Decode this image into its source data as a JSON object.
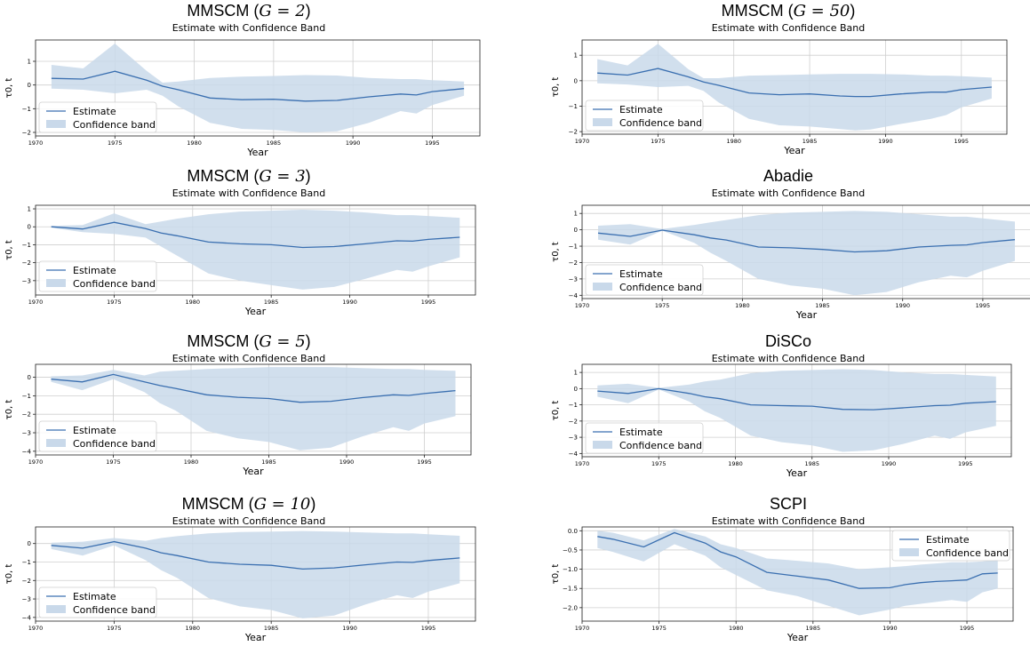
{
  "shared": {
    "subtitle": "Estimate with Confidence Band",
    "xlabel": "Year",
    "ylabel": "τ0, t",
    "legend_estimate": "Estimate",
    "legend_band": "Confidence band"
  },
  "colors": {
    "line": "#3a6fb0",
    "band": "#c9d9ea",
    "grid": "#cfcfcf"
  },
  "chart_data": [
    {
      "type": "line",
      "title_prefix": "MMSCM (",
      "title_math": "G = 2",
      "title_suffix": ")",
      "subtitle": "Estimate with Confidence Band",
      "xlabel": "Year",
      "ylabel": "τ0, t",
      "xlim": [
        1970,
        1998
      ],
      "ylim": [
        -2.15,
        1.9
      ],
      "xticks": [
        1970,
        1975,
        1980,
        1985,
        1990,
        1995
      ],
      "yticks": [
        -2,
        -1,
        0,
        1
      ],
      "grid": true,
      "legend": "lower-left",
      "x": [
        1971,
        1973,
        1975,
        1977,
        1978,
        1979,
        1981,
        1983,
        1985,
        1987,
        1989,
        1991,
        1993,
        1994,
        1995,
        1997
      ],
      "series": [
        {
          "name": "Estimate",
          "values": [
            0.28,
            0.25,
            0.58,
            0.2,
            -0.05,
            -0.2,
            -0.55,
            -0.62,
            -0.6,
            -0.68,
            -0.65,
            -0.5,
            -0.38,
            -0.42,
            -0.28,
            -0.15
          ]
        },
        {
          "name": "Confidence band",
          "lower": [
            -0.15,
            -0.2,
            -0.35,
            -0.2,
            -0.45,
            -0.9,
            -1.6,
            -1.85,
            -1.9,
            -2.0,
            -1.95,
            -1.6,
            -1.1,
            -1.2,
            -0.85,
            -0.45
          ],
          "upper": [
            0.85,
            0.7,
            1.75,
            0.6,
            0.1,
            0.15,
            0.3,
            0.35,
            0.38,
            0.42,
            0.4,
            0.3,
            0.25,
            0.25,
            0.2,
            0.15
          ]
        }
      ]
    },
    {
      "type": "line",
      "title_prefix": "MMSCM (",
      "title_math": "G = 3",
      "title_suffix": ")",
      "subtitle": "Estimate with Confidence Band",
      "xlabel": "Year",
      "ylabel": "τ0, t",
      "xlim": [
        1970,
        1998
      ],
      "ylim": [
        -3.8,
        1.2
      ],
      "xticks": [
        1970,
        1975,
        1980,
        1985,
        1990,
        1995
      ],
      "yticks": [
        -3,
        -2,
        -1,
        0,
        1
      ],
      "grid": true,
      "legend": "lower-left",
      "x": [
        1971,
        1973,
        1975,
        1977,
        1978,
        1979,
        1981,
        1983,
        1985,
        1987,
        1989,
        1991,
        1993,
        1994,
        1995,
        1997
      ],
      "series": [
        {
          "name": "Estimate",
          "values": [
            0.0,
            -0.12,
            0.25,
            -0.1,
            -0.35,
            -0.5,
            -0.85,
            -0.95,
            -1.0,
            -1.15,
            -1.1,
            -0.95,
            -0.78,
            -0.8,
            -0.7,
            -0.58
          ]
        },
        {
          "name": "Confidence band",
          "lower": [
            -0.05,
            -0.3,
            -0.4,
            -0.6,
            -1.1,
            -1.6,
            -2.6,
            -3.0,
            -3.25,
            -3.5,
            -3.35,
            -2.9,
            -2.4,
            -2.5,
            -2.2,
            -1.7
          ],
          "upper": [
            0.05,
            0.1,
            0.75,
            0.15,
            0.3,
            0.45,
            0.7,
            0.85,
            0.9,
            0.95,
            0.9,
            0.8,
            0.65,
            0.65,
            0.6,
            0.5
          ]
        }
      ]
    },
    {
      "type": "line",
      "title_prefix": "MMSCM (",
      "title_math": "G = 5",
      "title_suffix": ")",
      "subtitle": "Estimate with Confidence Band",
      "xlabel": "Year",
      "ylabel": "τ0, t",
      "xlim": [
        1970,
        1998
      ],
      "ylim": [
        -4.2,
        0.7
      ],
      "xticks": [
        1970,
        1975,
        1980,
        1985,
        1990,
        1995
      ],
      "yticks": [
        -4,
        -3,
        -2,
        -1,
        0
      ],
      "grid": true,
      "legend": "lower-left",
      "x": [
        1971,
        1973,
        1975,
        1977,
        1978,
        1979,
        1981,
        1983,
        1985,
        1987,
        1989,
        1991,
        1993,
        1994,
        1995,
        1997
      ],
      "series": [
        {
          "name": "Estimate",
          "values": [
            -0.1,
            -0.25,
            0.15,
            -0.25,
            -0.45,
            -0.6,
            -0.95,
            -1.08,
            -1.15,
            -1.35,
            -1.3,
            -1.1,
            -0.95,
            -0.98,
            -0.88,
            -0.72
          ]
        },
        {
          "name": "Confidence band",
          "lower": [
            -0.25,
            -0.7,
            -0.1,
            -0.8,
            -1.4,
            -1.8,
            -2.9,
            -3.3,
            -3.5,
            -3.95,
            -3.8,
            -3.2,
            -2.7,
            -2.9,
            -2.5,
            -2.1
          ],
          "upper": [
            0.05,
            0.1,
            0.4,
            0.1,
            0.3,
            0.35,
            0.45,
            0.5,
            0.55,
            0.55,
            0.55,
            0.5,
            0.45,
            0.45,
            0.4,
            0.35
          ]
        }
      ]
    },
    {
      "type": "line",
      "title_prefix": "MMSCM (",
      "title_math": "G = 10",
      "title_suffix": ")",
      "subtitle": "Estimate with Confidence Band",
      "xlabel": "Year",
      "ylabel": "τ0, t",
      "xlim": [
        1970,
        1998
      ],
      "ylim": [
        -4.2,
        0.9
      ],
      "xticks": [
        1970,
        1975,
        1980,
        1985,
        1990,
        1995
      ],
      "yticks": [
        -4,
        -3,
        -2,
        -1,
        0
      ],
      "grid": true,
      "legend": "lower-left",
      "x": [
        1971,
        1973,
        1975,
        1977,
        1978,
        1979,
        1981,
        1983,
        1985,
        1987,
        1989,
        1991,
        1993,
        1994,
        1995,
        1997
      ],
      "series": [
        {
          "name": "Estimate",
          "values": [
            -0.1,
            -0.25,
            0.1,
            -0.25,
            -0.5,
            -0.65,
            -1.0,
            -1.12,
            -1.18,
            -1.38,
            -1.32,
            -1.15,
            -1.0,
            -1.02,
            -0.92,
            -0.78
          ]
        },
        {
          "name": "Confidence band",
          "lower": [
            -0.3,
            -0.65,
            -0.1,
            -0.9,
            -1.45,
            -1.85,
            -2.95,
            -3.4,
            -3.6,
            -4.05,
            -3.9,
            -3.3,
            -2.8,
            -2.95,
            -2.6,
            -2.15
          ],
          "upper": [
            0.05,
            0.1,
            0.3,
            0.15,
            0.3,
            0.4,
            0.55,
            0.62,
            0.65,
            0.68,
            0.65,
            0.6,
            0.55,
            0.55,
            0.5,
            0.42
          ]
        }
      ]
    },
    {
      "type": "line",
      "title_prefix": "MMSCM (",
      "title_math": "G = 50",
      "title_suffix": ")",
      "subtitle": "Estimate with Confidence Band",
      "xlabel": "Year",
      "ylabel": "τ0, t",
      "xlim": [
        1970,
        1998
      ],
      "ylim": [
        -2.1,
        1.6
      ],
      "xticks": [
        1970,
        1975,
        1980,
        1985,
        1990,
        1995
      ],
      "yticks": [
        -2,
        -1,
        0,
        1
      ],
      "grid": true,
      "legend": "lower-left",
      "x": [
        1971,
        1973,
        1975,
        1977,
        1978,
        1979,
        1981,
        1983,
        1985,
        1987,
        1988,
        1989,
        1991,
        1993,
        1994,
        1995,
        1997
      ],
      "series": [
        {
          "name": "Estimate",
          "values": [
            0.3,
            0.22,
            0.48,
            0.15,
            -0.05,
            -0.18,
            -0.48,
            -0.55,
            -0.52,
            -0.6,
            -0.62,
            -0.62,
            -0.52,
            -0.45,
            -0.45,
            -0.35,
            -0.25
          ]
        },
        {
          "name": "Confidence band",
          "lower": [
            -0.1,
            -0.15,
            -0.25,
            -0.2,
            -0.4,
            -0.85,
            -1.5,
            -1.75,
            -1.8,
            -1.9,
            -1.95,
            -1.92,
            -1.7,
            -1.5,
            -1.35,
            -1.05,
            -0.7
          ],
          "upper": [
            0.85,
            0.6,
            1.45,
            0.45,
            0.1,
            0.1,
            0.2,
            0.22,
            0.25,
            0.27,
            0.27,
            0.27,
            0.25,
            0.2,
            0.2,
            0.18,
            0.12
          ]
        }
      ]
    },
    {
      "type": "line",
      "title": "Abadie",
      "subtitle": "Estimate with Confidence Band",
      "xlabel": "Year",
      "ylabel": "τ0, t",
      "xlim": [
        1970,
        1998
      ],
      "ylim": [
        -4.2,
        1.5
      ],
      "xticks": [
        1970,
        1975,
        1980,
        1985,
        1990,
        1995
      ],
      "yticks": [
        -4,
        -3,
        -2,
        -1,
        0,
        1
      ],
      "grid": true,
      "legend": "lower-left",
      "x": [
        1971,
        1973,
        1975,
        1977,
        1978,
        1979,
        1981,
        1983,
        1985,
        1987,
        1989,
        1991,
        1993,
        1994,
        1995,
        1997
      ],
      "series": [
        {
          "name": "Estimate",
          "values": [
            -0.2,
            -0.4,
            -0.02,
            -0.3,
            -0.5,
            -0.62,
            -1.05,
            -1.1,
            -1.2,
            -1.35,
            -1.28,
            -1.05,
            -0.95,
            -0.92,
            -0.78,
            -0.6
          ]
        },
        {
          "name": "Confidence band",
          "lower": [
            -0.6,
            -0.9,
            -0.05,
            -0.8,
            -1.4,
            -1.9,
            -3.0,
            -3.4,
            -3.6,
            -4.0,
            -3.8,
            -3.2,
            -2.8,
            -2.9,
            -2.5,
            -1.9
          ],
          "upper": [
            0.25,
            0.35,
            0.05,
            0.3,
            0.45,
            0.6,
            0.9,
            1.05,
            1.1,
            1.15,
            1.1,
            0.95,
            0.8,
            0.8,
            0.7,
            0.5
          ]
        }
      ]
    },
    {
      "type": "line",
      "title": "DiSCo",
      "subtitle": "Estimate with Confidence Band",
      "xlabel": "Year",
      "ylabel": "τ0, t",
      "xlim": [
        1970,
        1998
      ],
      "ylim": [
        -4.2,
        1.5
      ],
      "xticks": [
        1970,
        1975,
        1980,
        1985,
        1990,
        1995
      ],
      "yticks": [
        -4,
        -3,
        -2,
        -1,
        0,
        1
      ],
      "grid": true,
      "legend": "lower-left",
      "x": [
        1971,
        1973,
        1975,
        1977,
        1978,
        1979,
        1981,
        1983,
        1985,
        1987,
        1989,
        1991,
        1993,
        1994,
        1995,
        1997
      ],
      "series": [
        {
          "name": "Estimate",
          "values": [
            -0.15,
            -0.3,
            0.0,
            -0.3,
            -0.5,
            -0.62,
            -1.0,
            -1.05,
            -1.08,
            -1.28,
            -1.3,
            -1.18,
            -1.05,
            -1.02,
            -0.9,
            -0.8
          ]
        },
        {
          "name": "Confidence band",
          "lower": [
            -0.5,
            -0.9,
            -0.05,
            -0.8,
            -1.4,
            -1.8,
            -2.9,
            -3.3,
            -3.5,
            -3.9,
            -3.8,
            -3.4,
            -2.9,
            -3.1,
            -2.7,
            -2.3
          ],
          "upper": [
            0.2,
            0.3,
            0.05,
            0.25,
            0.45,
            0.55,
            0.95,
            1.1,
            1.15,
            1.2,
            1.15,
            1.0,
            0.9,
            0.9,
            0.85,
            0.75
          ]
        }
      ]
    },
    {
      "type": "line",
      "title": "SCPI",
      "subtitle": "Estimate with Confidence Band",
      "xlabel": "Year",
      "ylabel": "τ0, t",
      "xlim": [
        1970,
        1998
      ],
      "ylim": [
        -2.35,
        0.1
      ],
      "xticks": [
        1970,
        1975,
        1980,
        1985,
        1990,
        1995
      ],
      "yticks": [
        -2.0,
        -1.5,
        -1.0,
        -0.5,
        0.0
      ],
      "ytick_labels": [
        "−2.0",
        "−1.5",
        "−1.0",
        "−0.5",
        "0.0"
      ],
      "grid": true,
      "legend": "upper-right",
      "x": [
        1971,
        1972,
        1974,
        1976,
        1978,
        1979,
        1980,
        1982,
        1984,
        1986,
        1988,
        1990,
        1991,
        1992,
        1993,
        1994,
        1995,
        1996,
        1997
      ],
      "series": [
        {
          "name": "Estimate",
          "values": [
            -0.15,
            -0.22,
            -0.42,
            -0.05,
            -0.32,
            -0.55,
            -0.68,
            -1.08,
            -1.18,
            -1.28,
            -1.5,
            -1.48,
            -1.4,
            -1.35,
            -1.32,
            -1.3,
            -1.28,
            -1.12,
            -1.1
          ]
        },
        {
          "name": "Confidence band",
          "lower": [
            -0.45,
            -0.55,
            -0.8,
            -0.35,
            -0.65,
            -0.95,
            -1.15,
            -1.55,
            -1.7,
            -1.95,
            -2.2,
            -2.05,
            -1.95,
            -1.9,
            -1.85,
            -1.8,
            -1.85,
            -1.6,
            -1.5
          ],
          "upper": [
            0.0,
            -0.05,
            -0.25,
            0.05,
            -0.15,
            -0.35,
            -0.45,
            -0.72,
            -0.78,
            -0.85,
            -1.0,
            -0.95,
            -0.92,
            -0.88,
            -0.85,
            -0.82,
            -0.82,
            -0.8,
            -0.75
          ]
        }
      ]
    }
  ]
}
